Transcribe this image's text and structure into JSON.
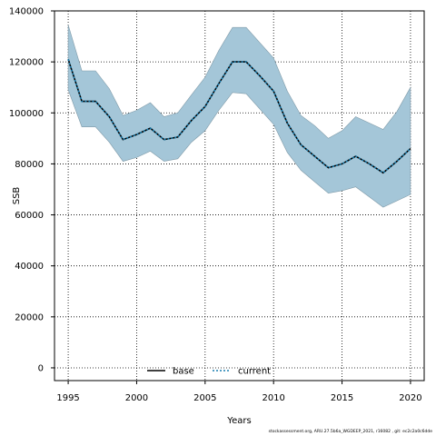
{
  "chart_data": {
    "type": "area",
    "xlabel": "Years",
    "ylabel": "SSB",
    "xlim": [
      1994,
      2021
    ],
    "ylim": [
      -5000,
      140000
    ],
    "x_ticks": [
      1995,
      2000,
      2005,
      2010,
      2015,
      2020
    ],
    "y_ticks": [
      0,
      20000,
      40000,
      60000,
      80000,
      100000,
      120000,
      140000
    ],
    "grid": true,
    "legend_position": "bottom-center",
    "band_color": "#a4c6d8",
    "years": [
      1995,
      1996,
      1997,
      1998,
      1999,
      2000,
      2001,
      2002,
      2003,
      2004,
      2005,
      2006,
      2007,
      2008,
      2009,
      2010,
      2011,
      2012,
      2013,
      2014,
      2015,
      2016,
      2017,
      2018,
      2019,
      2020
    ],
    "series": [
      {
        "name": "base",
        "color": "#000000",
        "style": "solid",
        "values": [
          121000,
          104500,
          104500,
          98500,
          89500,
          91500,
          94000,
          89500,
          90500,
          97000,
          102500,
          111500,
          120000,
          120000,
          114500,
          108500,
          96000,
          87500,
          83000,
          78500,
          80000,
          83000,
          80000,
          76500,
          81000,
          86000
        ]
      },
      {
        "name": "current",
        "color": "#1a7fb0",
        "style": "dotted",
        "values": [
          121000,
          104500,
          104500,
          98500,
          89500,
          91500,
          94000,
          89500,
          90500,
          97000,
          102500,
          111500,
          120000,
          120000,
          114500,
          108500,
          96000,
          87500,
          83000,
          78500,
          80000,
          83000,
          80000,
          76500,
          81000,
          86000
        ]
      }
    ],
    "band_upper": [
      134500,
      116500,
      116500,
      109500,
      99000,
      101000,
      104000,
      98500,
      100000,
      107000,
      114000,
      124500,
      133500,
      133500,
      127500,
      121500,
      108500,
      99000,
      95000,
      90000,
      93000,
      98500,
      96000,
      93500,
      100500,
      110000
    ],
    "band_lower": [
      109000,
      94500,
      94500,
      88500,
      81000,
      82500,
      85000,
      81000,
      82000,
      88500,
      93000,
      101000,
      108000,
      107500,
      101500,
      95500,
      84500,
      77500,
      73000,
      68500,
      69500,
      71000,
      67000,
      63000,
      65500,
      68000
    ]
  },
  "footer": {
    "note": "stockassessment.org, ARU.27.5b6a_WGDEEP_2021, r16082 , git: ec2c2a0c6dde"
  }
}
